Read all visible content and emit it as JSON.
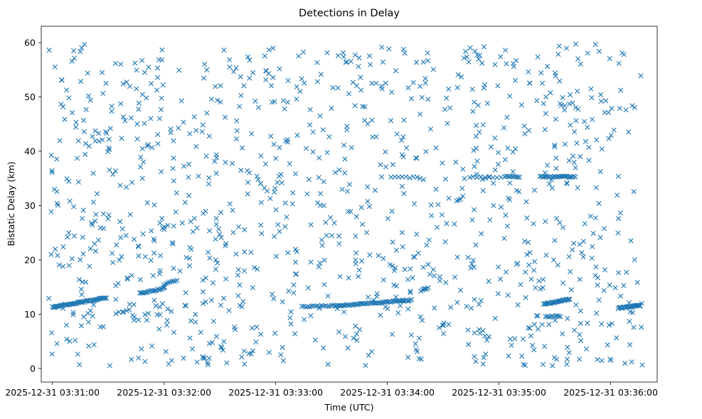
{
  "chart_data": {
    "type": "scatter",
    "title": "Detections in Delay",
    "xlabel": "Time (UTC)",
    "ylabel": "Bistatic Delay (km)",
    "xlim_seconds_after_03_30": [
      54,
      385
    ],
    "ylim": [
      -2.5,
      63
    ],
    "x_ticks": [
      {
        "label": "2025-12-31 03:31:00",
        "seconds_after_03_30": 60
      },
      {
        "label": "2025-12-31 03:32:00",
        "seconds_after_03_30": 120
      },
      {
        "label": "2025-12-31 03:33:00",
        "seconds_after_03_30": 180
      },
      {
        "label": "2025-12-31 03:34:00",
        "seconds_after_03_30": 240
      },
      {
        "label": "2025-12-31 03:35:00",
        "seconds_after_03_30": 300
      },
      {
        "label": "2025-12-31 03:36:00",
        "seconds_after_03_30": 360
      }
    ],
    "y_ticks": [
      0,
      10,
      20,
      30,
      40,
      50,
      60
    ],
    "marker": "x",
    "color": "#1f77b4",
    "grid": false,
    "clutter_approx_points": 1100,
    "clutter_region": {
      "t_range": [
        58,
        377
      ],
      "delay_range": [
        0.5,
        59.8
      ]
    },
    "tracks": [
      {
        "t_start": 60,
        "t_end": 89,
        "delay_start": 11.3,
        "delay_end": 13.0,
        "points": 55
      },
      {
        "t_start": 107,
        "t_end": 120,
        "delay_start": 13.8,
        "delay_end": 14.8,
        "points": 20
      },
      {
        "t_start": 120,
        "t_end": 127,
        "delay_start": 15.5,
        "delay_end": 16.2,
        "points": 8
      },
      {
        "t_start": 194,
        "t_end": 212,
        "delay_start": 11.4,
        "delay_end": 11.6,
        "points": 18
      },
      {
        "t_start": 212,
        "t_end": 253,
        "delay_start": 11.5,
        "delay_end": 12.6,
        "points": 60
      },
      {
        "t_start": 324,
        "t_end": 338,
        "delay_start": 11.8,
        "delay_end": 12.8,
        "points": 30
      },
      {
        "t_start": 364,
        "t_end": 376,
        "delay_start": 11.1,
        "delay_end": 11.6,
        "points": 26
      },
      {
        "t_start": 322,
        "t_end": 341,
        "delay_start": 35.3,
        "delay_end": 35.3,
        "points": 28
      },
      {
        "t_start": 303,
        "t_end": 311,
        "delay_start": 35.3,
        "delay_end": 35.3,
        "points": 10
      },
      {
        "t_start": 286,
        "t_end": 301,
        "delay_start": 35.2,
        "delay_end": 35.2,
        "points": 8
      },
      {
        "t_start": 325,
        "t_end": 333,
        "delay_start": 9.6,
        "delay_end": 9.6,
        "points": 10
      },
      {
        "t_start": 242,
        "t_end": 256,
        "delay_start": 35.2,
        "delay_end": 35.2,
        "points": 8
      },
      {
        "t_start": 258,
        "t_end": 262,
        "delay_start": 14.3,
        "delay_end": 14.8,
        "points": 6
      }
    ]
  }
}
